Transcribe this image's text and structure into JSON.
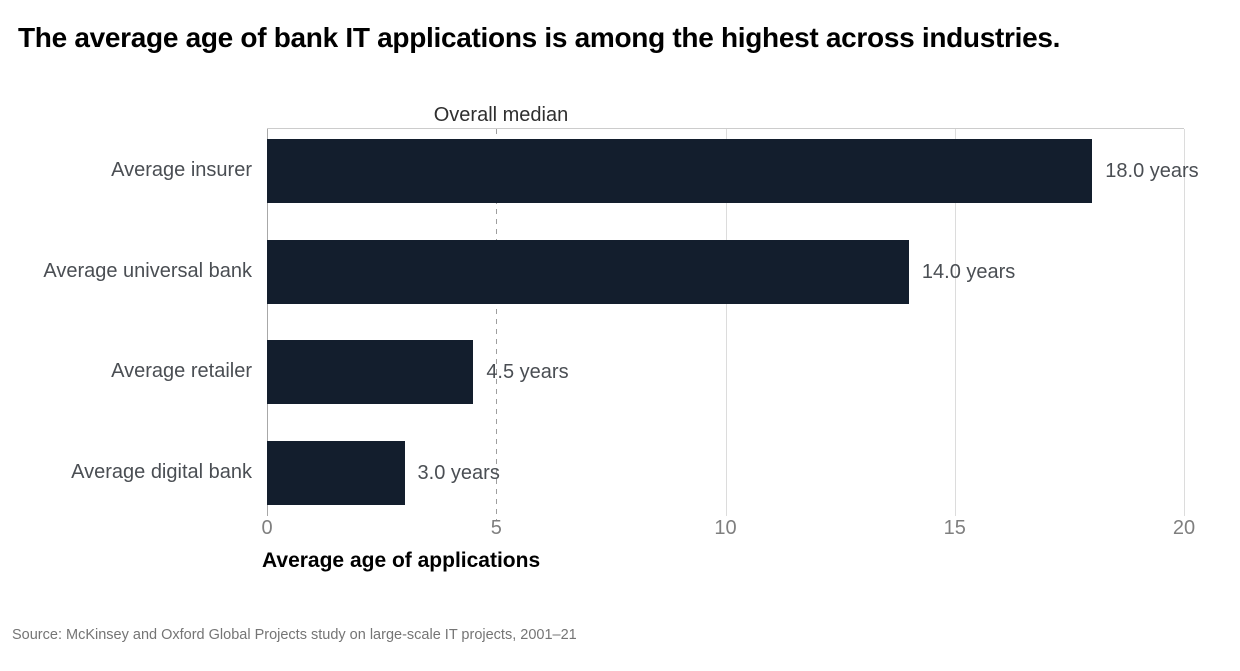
{
  "title": "The average age of bank IT applications is among the highest across industries.",
  "chart_data": {
    "type": "bar",
    "orientation": "horizontal",
    "categories": [
      "Average insurer",
      "Average universal bank",
      "Average retailer",
      "Average digital bank"
    ],
    "values": [
      18.0,
      14.0,
      4.5,
      3.0
    ],
    "value_labels": [
      "18.0 years",
      "14.0 years",
      "4.5 years",
      "3.0 years"
    ],
    "x_ticks": [
      "0",
      "5",
      "10",
      "15",
      "20"
    ],
    "x_tick_values": [
      0,
      5,
      10,
      15,
      20
    ],
    "xlim": [
      0,
      20
    ],
    "xlabel": "Average age of applications",
    "reference_line": {
      "label": "Overall median",
      "value": 5,
      "style": "dashed"
    },
    "bar_color": "#131e2d",
    "grid": true,
    "legend": "none"
  },
  "source": "Source: McKinsey and Oxford Global Projects study on large-scale IT projects, 2001–21"
}
